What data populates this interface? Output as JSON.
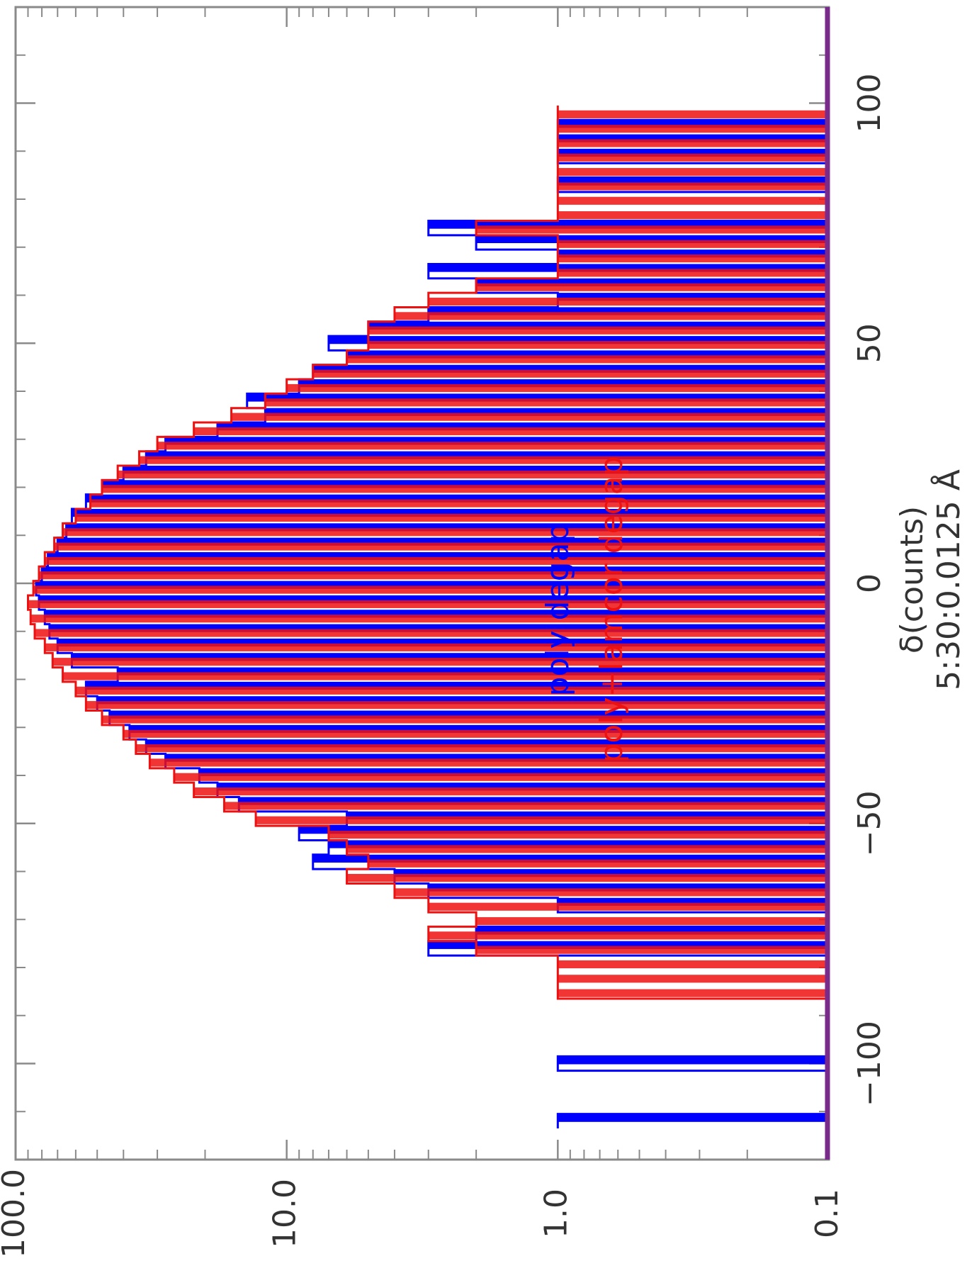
{
  "chart_data": {
    "type": "line",
    "orientation": "rotated-90-clockwise",
    "x_scale": "linear",
    "y_scale": "log",
    "xlabel": "δ(counts)",
    "xlabel_sub": "5:30:0.0125 Å",
    "ylabel": "",
    "xlim": [
      -120,
      120
    ],
    "ylim": [
      0.1,
      100
    ],
    "x_ticks": [
      "−100",
      "−50",
      "0",
      "50",
      "100"
    ],
    "x_tick_values": [
      -100,
      -50,
      0,
      50,
      100
    ],
    "y_ticks": [
      "0.1",
      "1.0",
      "10.0",
      "100.0"
    ],
    "y_tick_values": [
      0.1,
      1,
      10,
      100
    ],
    "grid": false,
    "legend_position": "center",
    "series": [
      {
        "name": "poly degap",
        "color": "#0000ff",
        "x": [
          -112,
          -109,
          -106,
          -103,
          -100,
          -97,
          -94,
          -91,
          -88,
          -85,
          -82,
          -79,
          -76,
          -73,
          -70,
          -67,
          -64,
          -61,
          -58,
          -55,
          -52,
          -49,
          -46,
          -43,
          -40,
          -37,
          -34,
          -31,
          -28,
          -25,
          -22,
          -19,
          -16,
          -13,
          -10,
          -7,
          -4,
          -1,
          2,
          5,
          8,
          11,
          14,
          17,
          20,
          23,
          26,
          29,
          32,
          35,
          38,
          41,
          44,
          47,
          50,
          53,
          56,
          59,
          62,
          65,
          68,
          71,
          74,
          77,
          80,
          83,
          86,
          89,
          92,
          95,
          98
        ],
        "values": [
          1,
          0.1,
          0.1,
          0.1,
          1,
          0.1,
          0.1,
          0.1,
          0.1,
          0.1,
          0.1,
          0.1,
          3,
          2,
          0.1,
          1,
          3,
          4,
          8,
          7,
          9,
          6,
          15,
          18,
          21,
          28,
          33,
          38,
          45,
          50,
          55,
          42,
          62,
          70,
          75,
          78,
          82,
          84,
          80,
          76,
          70,
          65,
          62,
          55,
          48,
          40,
          33,
          28,
          18,
          12,
          14,
          9,
          8,
          6,
          7,
          5,
          3,
          1,
          2,
          3,
          1,
          2,
          3,
          0.1,
          0.1,
          1,
          0.1,
          1,
          1,
          1,
          0.1
        ]
      },
      {
        "name": "poly+lamcor degap",
        "color": "#ee1111",
        "x": [
          -112,
          -109,
          -106,
          -103,
          -100,
          -97,
          -94,
          -91,
          -88,
          -85,
          -82,
          -79,
          -76,
          -73,
          -70,
          -67,
          -64,
          -61,
          -58,
          -55,
          -52,
          -49,
          -46,
          -43,
          -40,
          -37,
          -34,
          -31,
          -28,
          -25,
          -22,
          -19,
          -16,
          -13,
          -10,
          -7,
          -4,
          -1,
          2,
          5,
          8,
          11,
          14,
          17,
          20,
          23,
          26,
          29,
          32,
          35,
          38,
          41,
          44,
          47,
          50,
          53,
          56,
          59,
          62,
          65,
          68,
          71,
          74,
          77,
          80,
          83,
          86,
          89,
          92,
          95,
          98
        ],
        "values": [
          0.1,
          0.1,
          0.1,
          0.1,
          0.1,
          0.1,
          0.1,
          0.1,
          0.1,
          1,
          1,
          1,
          2,
          3,
          2,
          3,
          4,
          6,
          5,
          6,
          7,
          13,
          17,
          22,
          26,
          32,
          36,
          40,
          48,
          55,
          60,
          67,
          73,
          78,
          85,
          88,
          90,
          86,
          82,
          78,
          72,
          67,
          60,
          53,
          48,
          42,
          35,
          30,
          22,
          16,
          12,
          10,
          8,
          6,
          5,
          5,
          4,
          3,
          2,
          1,
          1,
          1,
          2,
          1,
          1,
          1,
          1,
          1,
          1,
          1,
          1
        ]
      }
    ],
    "baseline_color": "#7a2a8a"
  }
}
